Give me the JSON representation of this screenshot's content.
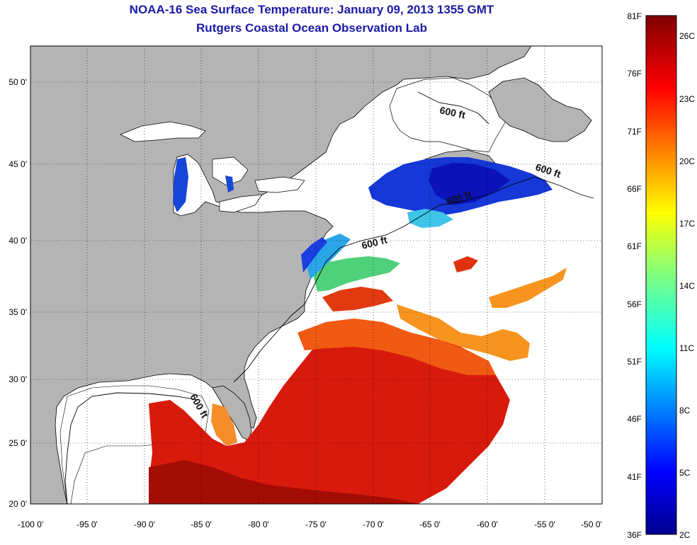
{
  "title_line1": "NOAA-16 Sea Surface Temperature:  January 09, 2013 1355 GMT",
  "title_line2": "Rutgers Coastal Ocean Observation Lab",
  "lat_ticks": [
    "50 0'",
    "45 0'",
    "40 0'",
    "35 0'",
    "30 0'",
    "25 0'",
    "20 0'"
  ],
  "lon_ticks": [
    "-100 0'",
    "-95 0'",
    "-90 0'",
    "-85 0'",
    "-80 0'",
    "-75 0'",
    "-70 0'",
    "-65 0'",
    "-60 0'",
    "-55 0'",
    "-50 0'"
  ],
  "contour_labels": [
    "600 ft",
    "600 ft",
    "600 ft",
    "600 ft",
    "600 ft"
  ],
  "colorbar": {
    "f_labels": [
      "81F",
      "76F",
      "71F",
      "66F",
      "61F",
      "56F",
      "51F",
      "46F",
      "41F",
      "36F"
    ],
    "c_labels": [
      "26C",
      "23C",
      "20C",
      "17C",
      "14C",
      "11C",
      "8C",
      "5C",
      "2C"
    ]
  },
  "colors": {
    "land": "#b4b4b4",
    "no_data": "#ffffff",
    "title": "#1a1aa6"
  }
}
